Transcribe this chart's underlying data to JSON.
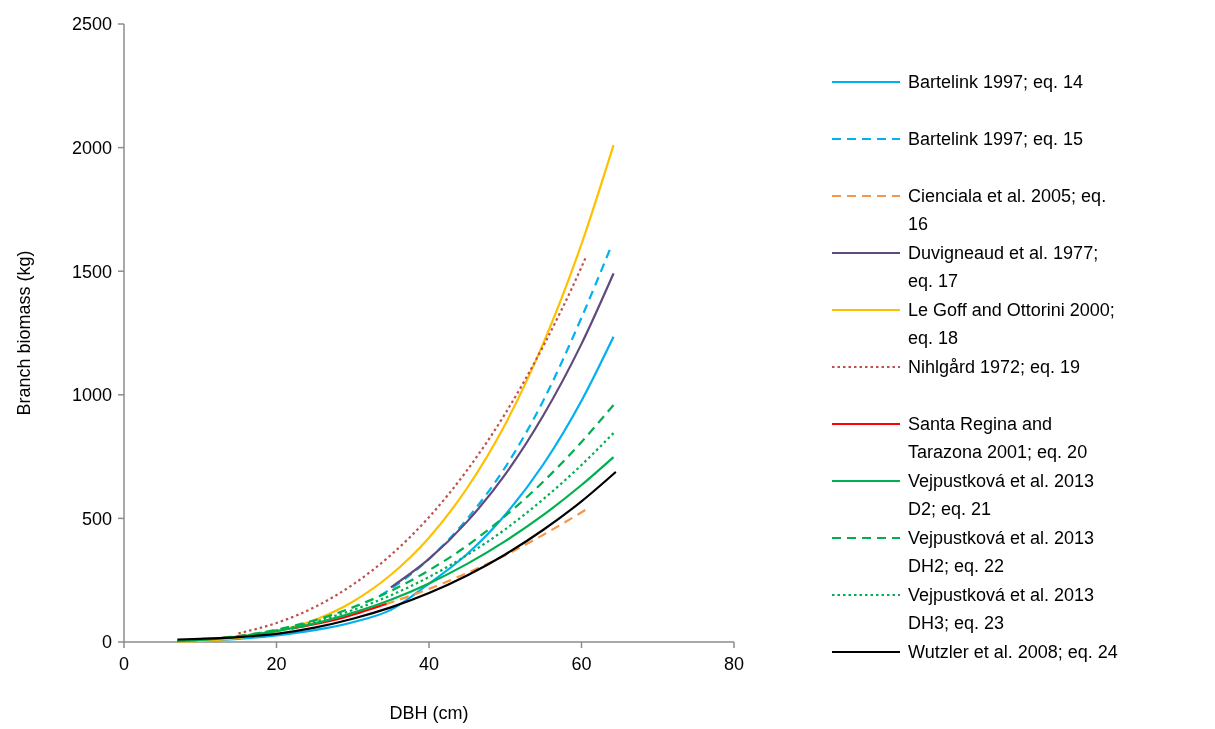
{
  "chart_data": {
    "type": "line",
    "xlabel": "DBH (cm)",
    "ylabel": "Branch biomass (kg)",
    "xlim": [
      0,
      80
    ],
    "xticks": [
      0,
      20,
      40,
      60,
      80
    ],
    "ylim": [
      0,
      2500
    ],
    "yticks": [
      0,
      500,
      1000,
      1500,
      2000,
      2500
    ],
    "legend": "right",
    "series": [
      {
        "name": "Bartelink 1997; eq. 14",
        "color": "#00b0f0",
        "line_style": "solid",
        "x": [
          7,
          10,
          15,
          20,
          25,
          30,
          35,
          40,
          45,
          50,
          55,
          60,
          64.2
        ],
        "values": [
          2,
          5,
          13,
          27,
          48,
          80,
          130,
          236,
          356,
          515,
          719,
          976,
          1235
        ]
      },
      {
        "name": "Bartelink 1997; eq. 15",
        "color": "#00b0f0",
        "line_style": "dashed",
        "x": [
          33.6,
          35,
          40,
          45,
          50,
          55,
          60,
          63.7
        ],
        "values": [
          188,
          215,
          336,
          498,
          707,
          977,
          1312,
          1586
        ]
      },
      {
        "name": "Cienciala et al. 2005; eq. 16",
        "color": "#f79646",
        "line_style": "dashed",
        "x": [
          7,
          10,
          15,
          20,
          25,
          30,
          35,
          40,
          45,
          50,
          55,
          60.5
        ],
        "values": [
          5,
          10,
          25,
          47,
          77,
          114,
          160,
          215,
          279,
          351,
          434,
          534
        ]
      },
      {
        "name": "Duvigneaud et al. 1977; eq. 17",
        "color": "#604a7b",
        "line_style": "solid",
        "x": [
          35,
          40,
          45,
          50,
          55,
          60,
          64.2
        ],
        "values": [
          221,
          336,
          487,
          678,
          917,
          1206,
          1491
        ]
      },
      {
        "name": "Le Goff and Ottorini 2000; eq. 18",
        "color": "#ffc000",
        "line_style": "solid",
        "x": [
          7,
          10,
          15,
          20,
          25,
          30,
          35,
          40,
          45,
          50,
          55,
          60,
          64.2
        ],
        "values": [
          1,
          4,
          17,
          43,
          89,
          163,
          272,
          422,
          623,
          881,
          1209,
          1610,
          2010
        ]
      },
      {
        "name": "Nihlgård 1972; eq. 19",
        "color": "#c0504d",
        "line_style": "dotted",
        "x": [
          15,
          20,
          25,
          30,
          35,
          40,
          45,
          50,
          55,
          60,
          60.5
        ],
        "values": [
          35,
          77,
          141,
          232,
          352,
          505,
          695,
          924,
          1198,
          1517,
          1552
        ]
      },
      {
        "name": "Santa Regina and Tarazona 2001; eq. 20",
        "color": "#ff0000",
        "line_style": "solid",
        "x": [
          22,
          25,
          28,
          31,
          34.4
        ],
        "values": [
          54,
          72,
          92,
          120,
          154
        ]
      },
      {
        "name": "Vejpustková et al. 2013 D2; eq. 21",
        "color": "#00b050",
        "line_style": "solid",
        "x": [
          7,
          10,
          15,
          20,
          25,
          30,
          35,
          40,
          45,
          50,
          55,
          60,
          64.2
        ],
        "values": [
          4,
          8,
          22,
          44,
          75,
          118,
          171,
          237,
          316,
          408,
          514,
          635,
          748
        ]
      },
      {
        "name": "Vejpustková et al. 2013 DH2; eq. 22",
        "color": "#00b050",
        "line_style": "dashed",
        "x": [
          7,
          10,
          15,
          20,
          25,
          30,
          35,
          40,
          45,
          50,
          55,
          60,
          64.2
        ],
        "values": [
          4,
          9,
          24,
          50,
          88,
          140,
          207,
          290,
          390,
          510,
          649,
          809,
          959
        ]
      },
      {
        "name": "Vejpustková et al. 2013 DH3; eq. 23",
        "color": "#00b050",
        "line_style": "dotted",
        "x": [
          7,
          10,
          15,
          20,
          25,
          30,
          35,
          40,
          45,
          50,
          55,
          60,
          64.2
        ],
        "values": [
          3,
          9,
          23,
          47,
          82,
          129,
          189,
          263,
          352,
          456,
          578,
          716,
          845
        ]
      },
      {
        "name": "Wutzler et al. 2008; eq. 24",
        "color": "#000000",
        "line_style": "solid",
        "x": [
          7,
          10,
          15,
          20,
          25,
          30,
          35,
          40,
          45,
          50,
          55,
          60,
          64.5
        ],
        "values": [
          10,
          13,
          20,
          33,
          58,
          94,
          140,
          198,
          269,
          354,
          454,
          569,
          688
        ]
      }
    ]
  }
}
